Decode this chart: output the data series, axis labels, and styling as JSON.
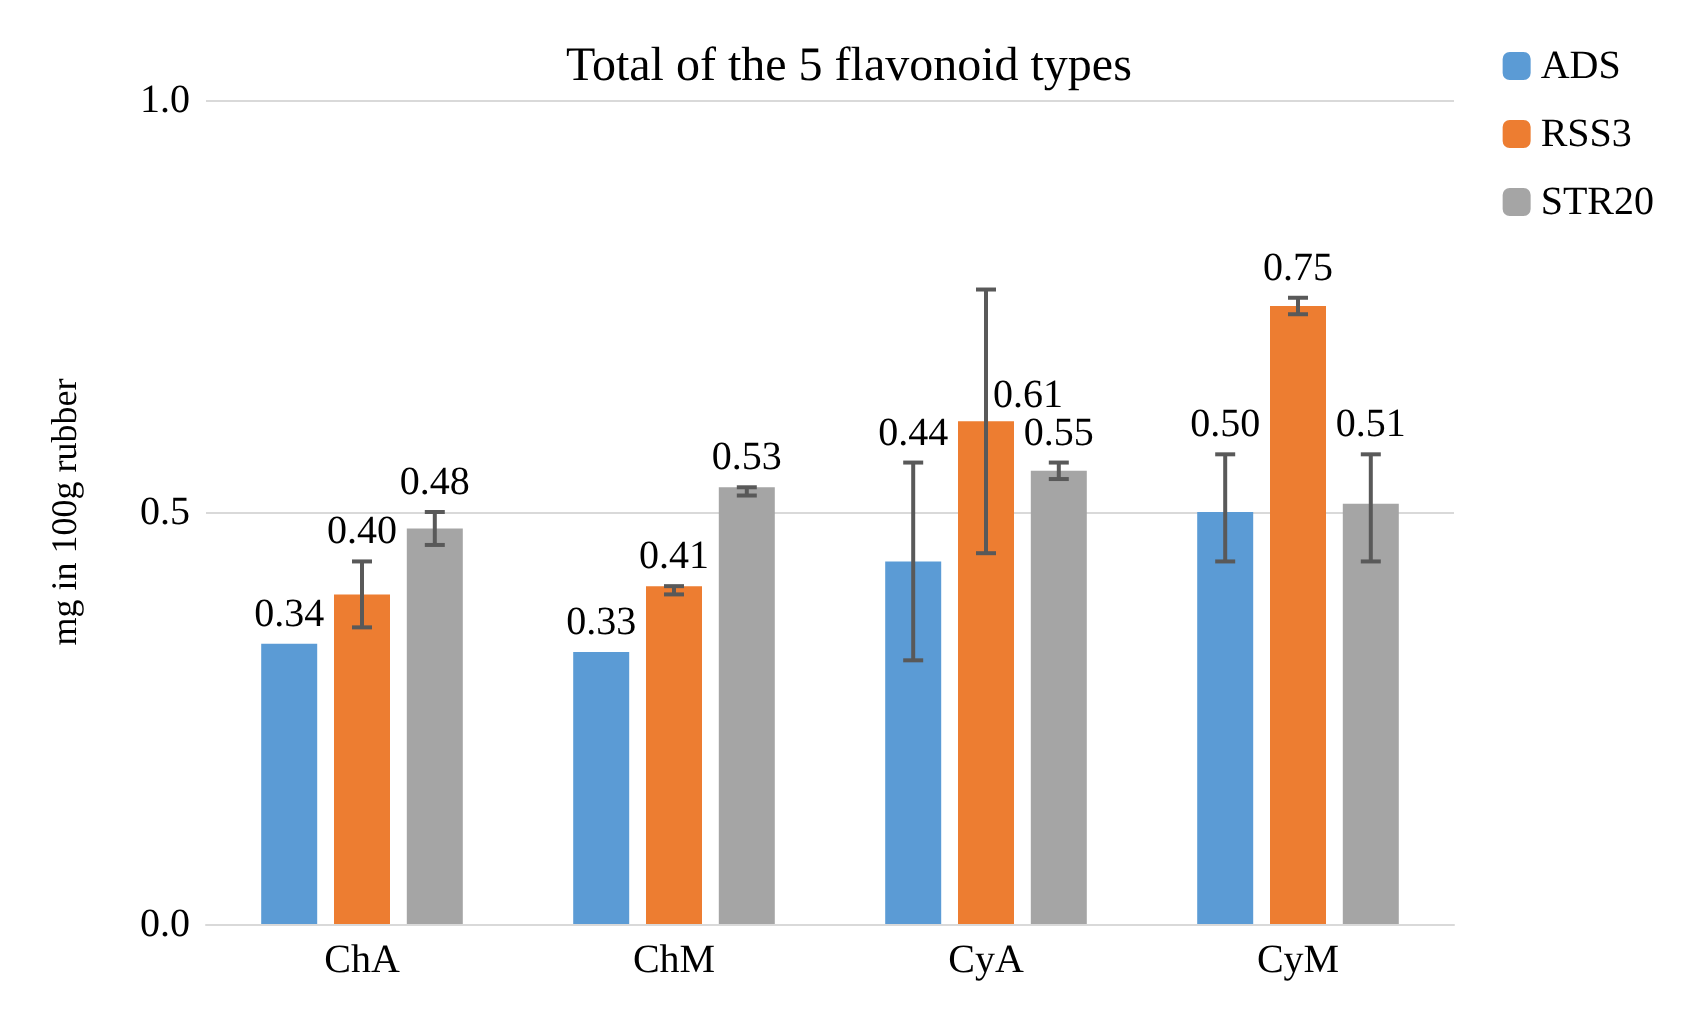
{
  "chart_data": {
    "type": "bar",
    "title": "Total of the 5 flavonoid types",
    "ylabel": "mg in 100g rubber",
    "categories": [
      "ChA",
      "ChM",
      "CyA",
      "CyM"
    ],
    "series": [
      {
        "name": "ADS",
        "color": "#5b9bd5",
        "values": [
          0.34,
          0.33,
          0.44,
          0.5
        ],
        "value_labels": [
          "0.34",
          "0.33",
          "0.44",
          "0.50"
        ],
        "errors": [
          null,
          null,
          [
            0.32,
            0.56
          ],
          [
            0.44,
            0.57
          ]
        ]
      },
      {
        "name": "RSS3",
        "color": "#ed7d31",
        "values": [
          0.4,
          0.41,
          0.61,
          0.75
        ],
        "value_labels": [
          "0.40",
          "0.41",
          "0.61",
          "0.75"
        ],
        "errors": [
          [
            0.36,
            0.44
          ],
          [
            0.4,
            0.41
          ],
          [
            0.45,
            0.77
          ],
          [
            0.74,
            0.76
          ]
        ]
      },
      {
        "name": "STR20",
        "color": "#a5a5a5",
        "values": [
          0.48,
          0.53,
          0.55,
          0.51
        ],
        "value_labels": [
          "0.48",
          "0.53",
          "0.55",
          "0.51"
        ],
        "errors": [
          [
            0.46,
            0.5
          ],
          [
            0.52,
            0.53
          ],
          [
            0.54,
            0.56
          ],
          [
            0.44,
            0.57
          ]
        ]
      }
    ],
    "ylim": [
      0,
      1
    ],
    "yticks": [
      {
        "value": 0,
        "label": "0.0"
      },
      {
        "value": 0.5,
        "label": "0.5"
      },
      {
        "value": 1,
        "label": "1.0"
      }
    ],
    "grid": "y",
    "legend": "top right"
  }
}
